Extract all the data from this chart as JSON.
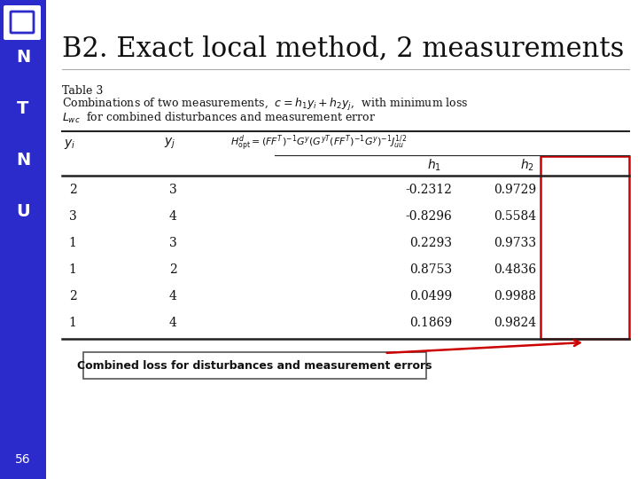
{
  "title": "B2. Exact local method, 2 measurements",
  "bg_color": "#ffffff",
  "sidebar_color": "#2b2bcc",
  "page_number": "56",
  "rows": [
    [
      "2",
      "3",
      "-0.2312",
      "0.9729"
    ],
    [
      "3",
      "4",
      "-0.8296",
      "0.5584"
    ],
    [
      "1",
      "3",
      "0.2293",
      "0.9733"
    ],
    [
      "1",
      "2",
      "0.8753",
      "0.4836"
    ],
    [
      "2",
      "4",
      "0.0499",
      "0.9988"
    ],
    [
      "1",
      "4",
      "0.1869",
      "0.9824"
    ]
  ],
  "annotation_text": "Combined loss for disturbances and measurement errors",
  "arrow_color": "#cc0000",
  "box_border_color": "#cc0000",
  "text_color": "#111111",
  "line_color": "#222222"
}
